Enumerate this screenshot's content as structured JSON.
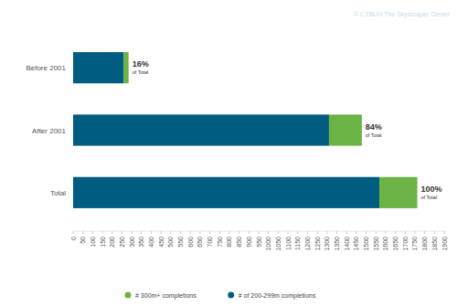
{
  "chart_data": {
    "type": "bar",
    "orientation": "horizontal",
    "stacked": true,
    "grid": false,
    "legend": "bottom",
    "source": "© CTBUH The Skyscraper Center",
    "categories": [
      "Before 2001",
      "After 2001",
      "Total"
    ],
    "series": [
      {
        "name": "# of 200-299m completions",
        "color": "#005c80",
        "values": [
          258,
          1310,
          1568
        ]
      },
      {
        "name": "# 300m+ completions",
        "color": "#6ab344",
        "values": [
          26,
          168,
          194
        ]
      }
    ],
    "annotations": [
      {
        "label": "16%",
        "text": "of Total"
      },
      {
        "label": "84%",
        "text": "of Total"
      },
      {
        "label": "100%",
        "text": "of Total"
      }
    ],
    "xlim": [
      0,
      1900
    ],
    "xticks": [
      0,
      50,
      100,
      150,
      200,
      250,
      300,
      350,
      400,
      450,
      500,
      550,
      600,
      650,
      700,
      750,
      800,
      850,
      900,
      950,
      1000,
      1050,
      1100,
      1150,
      1200,
      1250,
      1300,
      1350,
      1400,
      1450,
      1500,
      1550,
      1600,
      1650,
      1700,
      1750,
      1800,
      1850,
      1900
    ]
  }
}
